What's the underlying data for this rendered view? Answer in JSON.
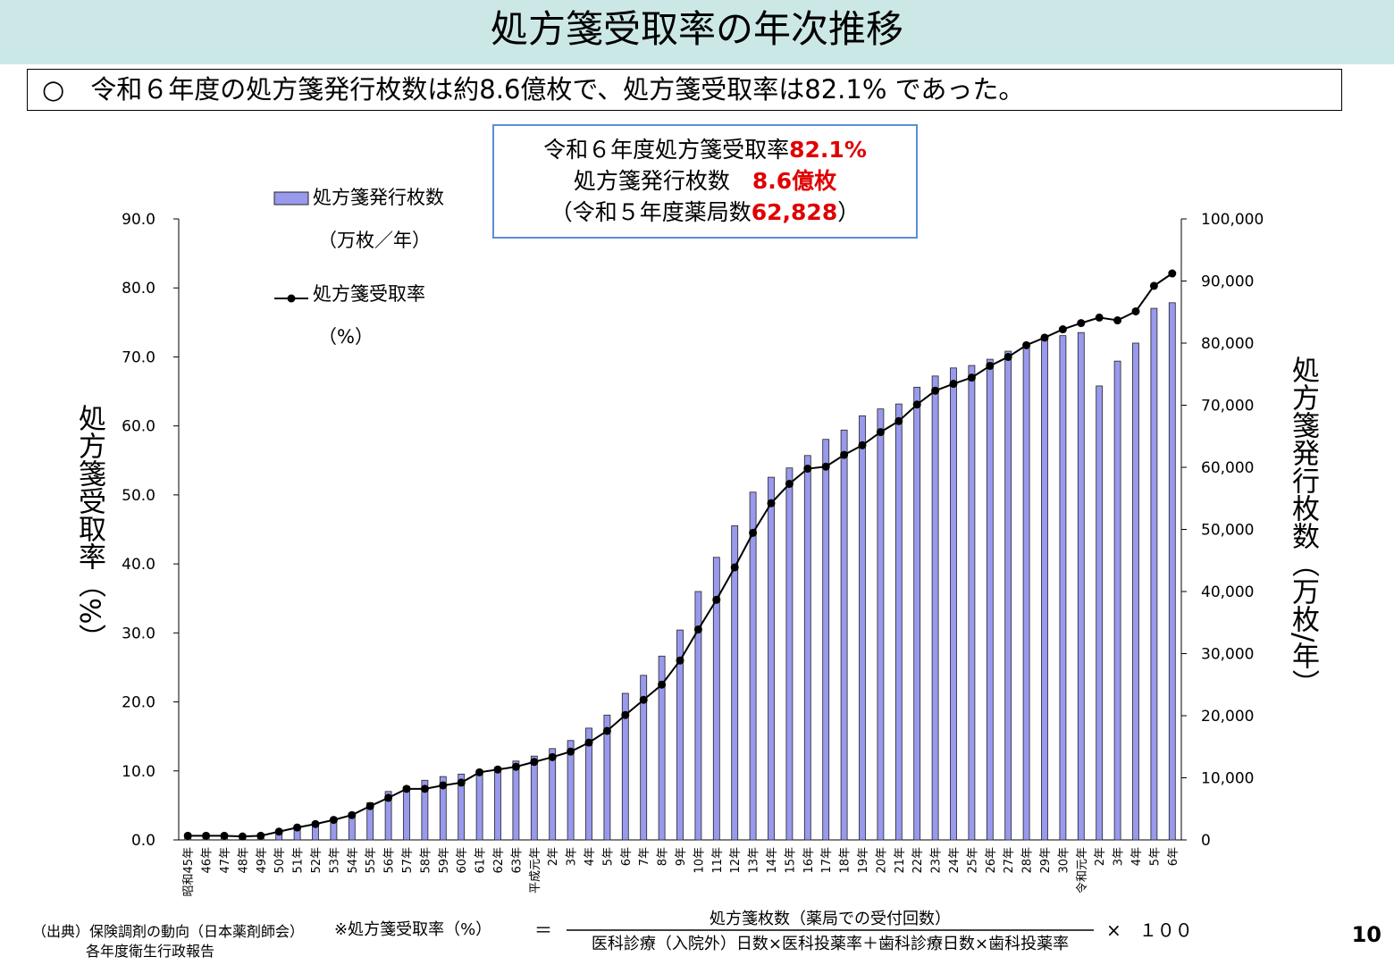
{
  "title": "処方箋受取率の年次推移",
  "statement": "○　令和６年度の処方箋発行枚数は約8.6億枚で、処方箋受取率は82.1% であった。",
  "info_box": {
    "line1": [
      "令和６年度処方箋受取率",
      "82.1%"
    ],
    "line2": [
      "処方箋発行枚数　",
      "8.6億枚"
    ],
    "line3": [
      "（令和５年度薬局数",
      "62,828",
      "）"
    ]
  },
  "chart_data": {
    "type": "bar_line",
    "categories": [
      "昭和45年",
      "46年",
      "47年",
      "48年",
      "49年",
      "50年",
      "51年",
      "52年",
      "53年",
      "54年",
      "55年",
      "56年",
      "57年",
      "58年",
      "59年",
      "60年",
      "61年",
      "62年",
      "63年",
      "平成元年",
      "2年",
      "3年",
      "4年",
      "5年",
      "6年",
      "7年",
      "8年",
      "9年",
      "10年",
      "11年",
      "12年",
      "13年",
      "14年",
      "15年",
      "16年",
      "17年",
      "18年",
      "19年",
      "20年",
      "21年",
      "22年",
      "23年",
      "24年",
      "25年",
      "26年",
      "27年",
      "28年",
      "29年",
      "30年",
      "令和元年",
      "2年",
      "3年",
      "4年",
      "5年",
      "6年"
    ],
    "series": [
      {
        "name": "処方箋発行枚数",
        "unit_label": "（万枚／年）",
        "color": "#9999ee",
        "axis": "y2",
        "kind": "bar",
        "values": [
          400,
          400,
          400,
          400,
          600,
          1300,
          1700,
          2400,
          3200,
          4300,
          6000,
          7800,
          8600,
          9600,
          10200,
          10600,
          11200,
          11700,
          12700,
          13500,
          14700,
          16000,
          18000,
          20100,
          23600,
          26500,
          29600,
          33800,
          40000,
          45500,
          50600,
          56000,
          58400,
          59900,
          61900,
          64500,
          66000,
          68300,
          69400,
          70200,
          72900,
          74700,
          76000,
          76400,
          77400,
          78700,
          79400,
          80600,
          81200,
          81700,
          73100,
          77100,
          80000,
          85600,
          86500
        ]
      },
      {
        "name": "処方箋受取率",
        "unit_label": "（%）",
        "color": "#000000",
        "axis": "y",
        "kind": "line",
        "values": [
          0.6,
          0.6,
          0.6,
          0.5,
          0.6,
          1.2,
          1.8,
          2.3,
          2.9,
          3.6,
          4.9,
          6.1,
          7.4,
          7.4,
          7.9,
          8.3,
          9.8,
          10.2,
          10.6,
          11.3,
          12.0,
          12.8,
          14.1,
          15.8,
          18.1,
          20.3,
          22.5,
          26.0,
          30.5,
          34.8,
          39.5,
          44.5,
          48.8,
          51.6,
          53.8,
          54.1,
          55.8,
          57.2,
          59.1,
          60.7,
          63.1,
          65.1,
          66.1,
          67.0,
          68.7,
          70.0,
          71.7,
          72.8,
          74.0,
          74.9,
          75.7,
          75.3,
          76.6,
          80.3,
          82.1
        ]
      }
    ],
    "y_label": "処方箋受取率（%）",
    "y2_label": "処方箋発行枚数（万枚/年）",
    "ylim": [
      0,
      90
    ],
    "yticks": [
      {
        "value": 0,
        "label": "0.0"
      },
      {
        "value": 10,
        "label": "10.0"
      },
      {
        "value": 20,
        "label": "20.0"
      },
      {
        "value": 30,
        "label": "30.0"
      },
      {
        "value": 40,
        "label": "40.0"
      },
      {
        "value": 50,
        "label": "50.0"
      },
      {
        "value": 60,
        "label": "60.0"
      },
      {
        "value": 70,
        "label": "70.0"
      },
      {
        "value": 80,
        "label": "80.0"
      },
      {
        "value": 90,
        "label": "90.0"
      }
    ],
    "y2lim": [
      0,
      100000
    ],
    "y2ticks": [
      0,
      {
        "value": 10000,
        "label": "10,000"
      },
      {
        "value": 20000,
        "label": "20,000"
      },
      {
        "value": 30000,
        "label": "30,000"
      },
      {
        "value": 40000,
        "label": "40,000"
      },
      {
        "value": 50000,
        "label": "50,000"
      },
      {
        "value": 60000,
        "label": "60,000"
      },
      {
        "value": 70000,
        "label": "70,000"
      },
      {
        "value": 80000,
        "label": "80,000"
      },
      {
        "value": 90000,
        "label": "90,000"
      },
      {
        "value": 100000,
        "label": "100,000"
      }
    ],
    "grid": false,
    "legend": "upper left"
  },
  "footer": {
    "source": "（出典）保険調剤の動向（日本薬剤師会）",
    "source2": "各年度衛生行政報告",
    "formula_label": "※処方箋受取率（%）",
    "equals": "＝",
    "numerator": "処方箋枚数（薬局での受付回数）",
    "denominator": "医科診療（入院外）日数×医科投薬率＋歯科診療日数×歯科投薬率",
    "multiplier": "×　１００",
    "page_number": "10"
  }
}
